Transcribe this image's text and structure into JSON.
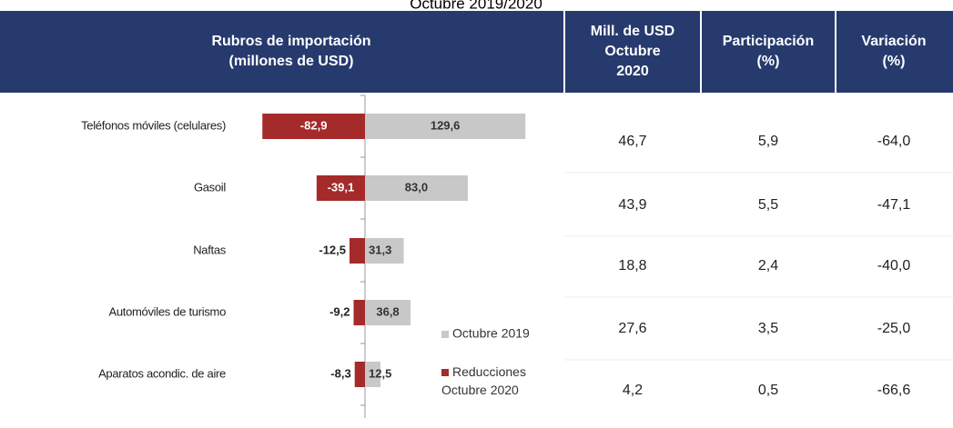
{
  "caption": "Octubre 2019/2020",
  "headers": [
    [
      "Rubros de importación",
      "(millones de USD)"
    ],
    [
      "Mill. de USD",
      "Octubre",
      "2020"
    ],
    [
      "Participación",
      "(%)"
    ],
    [
      "Variación",
      "(%)"
    ]
  ],
  "table": {
    "rows": [
      [
        "46,7",
        "5,9",
        "-64,0"
      ],
      [
        "43,9",
        "5,5",
        "-47,1"
      ],
      [
        "18,8",
        "2,4",
        "-40,0"
      ],
      [
        "27,6",
        "3,5",
        "-25,0"
      ],
      [
        "4,2",
        "0,5",
        "-66,6"
      ]
    ]
  },
  "chart_data": {
    "type": "bar",
    "orientation": "horizontal",
    "categories": [
      "Teléfonos móviles (celulares)",
      "Gasoil",
      "Naftas",
      "Automóviles de turismo",
      "Aparatos acondic. de aire"
    ],
    "xlim": [
      -100,
      150
    ],
    "series": [
      {
        "name": "Octubre 2019",
        "color": "#c8c8c8",
        "values": [
          129.6,
          83.0,
          31.3,
          36.8,
          12.5
        ],
        "value_labels": [
          "129,6",
          "83,0",
          "31,3",
          "36,8",
          "12,5"
        ]
      },
      {
        "name": "Reducciones Octubre 2020",
        "color": "#a52a2a",
        "values": [
          -82.9,
          -39.1,
          -12.5,
          -9.2,
          -8.3
        ],
        "value_labels": [
          "-82,9",
          "-39,1",
          "-12,5",
          "-9,2",
          "-8,3"
        ]
      }
    ]
  }
}
